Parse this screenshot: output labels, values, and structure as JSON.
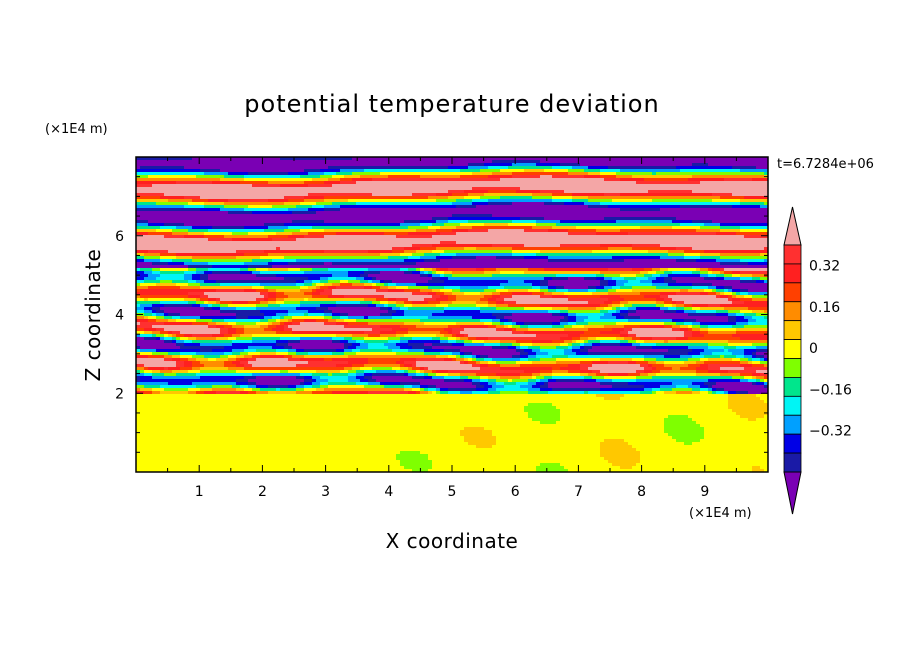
{
  "chart_data": {
    "type": "heatmap",
    "title": "potential temperature deviation",
    "xlabel": "X coordinate",
    "ylabel": "Z coordinate",
    "x_unit": "(×1E4 m)",
    "y_unit": "(×1E4 m)",
    "time_label": "t=6.7284e+06",
    "xlim": [
      0,
      10
    ],
    "ylim": [
      0,
      8
    ],
    "x_ticks": [
      1,
      2,
      3,
      4,
      5,
      6,
      7,
      8,
      9
    ],
    "x_tick_labels": [
      "1",
      "2",
      "3",
      "4",
      "5",
      "6",
      "7",
      "8",
      "9"
    ],
    "y_ticks": [
      2,
      4,
      6
    ],
    "y_tick_labels": [
      "2",
      "4",
      "6"
    ],
    "colorbar": {
      "levels": [
        -0.48,
        -0.4,
        -0.32,
        -0.24,
        -0.16,
        -0.08,
        0,
        0.08,
        0.16,
        0.24,
        0.32,
        0.4,
        0.48
      ],
      "colors": [
        "#7a00b4",
        "#1a1aa6",
        "#0000e6",
        "#00a0ff",
        "#00f5f5",
        "#00e68c",
        "#7fff00",
        "#ffff00",
        "#ffc800",
        "#ff8c00",
        "#ff4000",
        "#ff2020",
        "#ff3030",
        "#f4a6a6"
      ],
      "label_values": [
        0.32,
        0.16,
        0,
        -0.16,
        -0.32
      ],
      "labels": [
        "0.32",
        "0.16",
        "0",
        "−0.16",
        "−0.32"
      ],
      "extend": "both"
    },
    "description_regions": {
      "layer_below_z2": "values near 0 (green, mostly 0 to 0.08)",
      "layer_z2_to_z5": "fine-scale alternating positive and negative deviations spanning full range",
      "layer_above_z5": "broad alternating bands of ≤ -0.48 (purple) and ≥ 0.48 (pink)"
    }
  }
}
